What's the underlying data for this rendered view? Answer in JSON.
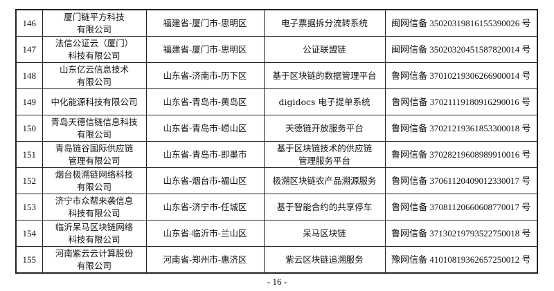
{
  "rows": [
    {
      "no": "146",
      "company": [
        "厦门链平方科技",
        "有限公司"
      ],
      "region": "福建省-厦门市-思明区",
      "service": [
        "电子票据拆分流转系统"
      ],
      "record": "闽网信备 35020319816155390026 号"
    },
    {
      "no": "147",
      "company": [
        "法信公证云（厦门）",
        "科技有限公司"
      ],
      "region": "福建省-厦门市-思明区",
      "service": [
        "公证联盟链"
      ],
      "record": "闽网信备 35020320451587820014 号"
    },
    {
      "no": "148",
      "company": [
        "山东亿云信息技术",
        "有限公司"
      ],
      "region": "山东省-济南市-历下区",
      "service": [
        "基于区块链的数据管理平台"
      ],
      "record": "鲁网信备 37010219306266900014 号"
    },
    {
      "no": "149",
      "company": [
        "中化能源科技有限公司"
      ],
      "region": "山东省-青岛市-黄岛区",
      "service": [
        "digidocs 电子提单系统"
      ],
      "record": "鲁网信备 37021119180916290016 号"
    },
    {
      "no": "150",
      "company": [
        "青岛天德信链信息科技",
        "有限公司"
      ],
      "region": "山东省-青岛市-崂山区",
      "service": [
        "天德链开放服务平台"
      ],
      "record": "鲁网信备 37021219361853300018 号"
    },
    {
      "no": "151",
      "company": [
        "青岛链谷国际供应链",
        "管理有限公司"
      ],
      "region": "山东省-青岛市-即墨市",
      "service": [
        "基于区块链技术的供应链",
        "管理服务平台"
      ],
      "record": "鲁网信备 37028219608989910016 号"
    },
    {
      "no": "152",
      "company": [
        "烟台极溯链网络科技",
        "有限公司"
      ],
      "region": "山东省-烟台市-福山区",
      "service": [
        "极溯区块链农产品溯源服务"
      ],
      "record": "鲁网信备 37061120409012330017 号"
    },
    {
      "no": "153",
      "company": [
        "济宁市众帮来袭信息",
        "科技有限公司"
      ],
      "region": "山东省-济宁市-任城区",
      "service": [
        "基于智能合约的共享停车"
      ],
      "record": "鲁网信备 37081120660608770017 号"
    },
    {
      "no": "154",
      "company": [
        "临沂呆马区块链网络",
        "科技有限公司"
      ],
      "region": "山东省-临沂市-兰山区",
      "service": [
        "呆马区块链"
      ],
      "record": "鲁网信备 37130219793522750018 号"
    },
    {
      "no": "155",
      "company": [
        "河南紫云云计算股份",
        "有限公司"
      ],
      "region": "河南省-郑州市-惠济区",
      "service": [
        "紫云区块链追溯服务"
      ],
      "record": "豫网信备 41010819362657250012 号"
    }
  ],
  "page_number": "- 16 -"
}
